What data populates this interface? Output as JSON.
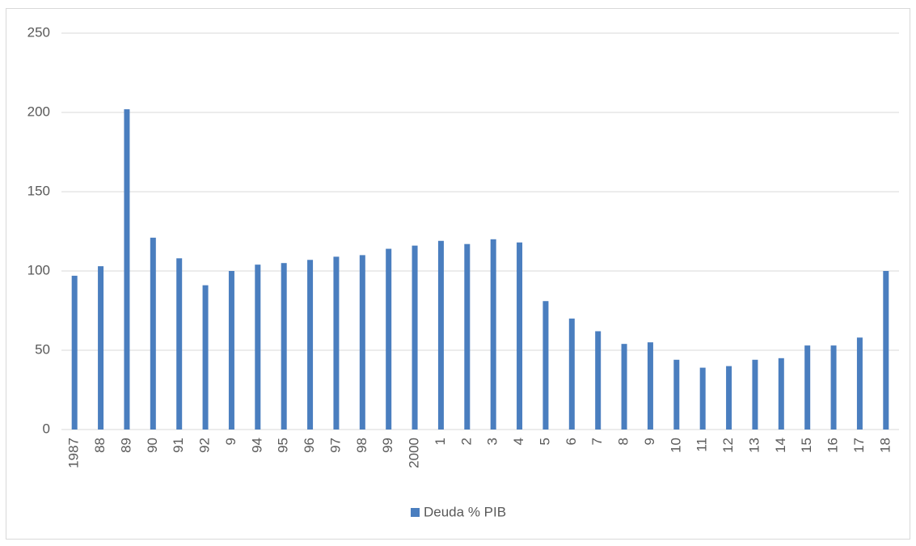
{
  "chart_data": {
    "type": "bar",
    "categories": [
      "1987",
      "88",
      "89",
      "90",
      "91",
      "92",
      "9",
      "94",
      "95",
      "96",
      "97",
      "98",
      "99",
      "2000",
      "1",
      "2",
      "3",
      "4",
      "5",
      "6",
      "7",
      "8",
      "9",
      "10",
      "11",
      "12",
      "13",
      "14",
      "15",
      "16",
      "17",
      "18"
    ],
    "series": [
      {
        "name": "Deuda % PIB",
        "color": "#4a7ebf",
        "values": [
          97,
          103,
          202,
          121,
          108,
          91,
          100,
          104,
          105,
          107,
          109,
          110,
          114,
          116,
          119,
          117,
          120,
          118,
          81,
          70,
          62,
          54,
          55,
          44,
          39,
          40,
          44,
          45,
          53,
          53,
          58,
          100
        ]
      }
    ],
    "ylim": [
      0,
      250
    ],
    "yticks": [
      0,
      50,
      100,
      150,
      200,
      250
    ],
    "grid": true,
    "legend": "bottom"
  }
}
